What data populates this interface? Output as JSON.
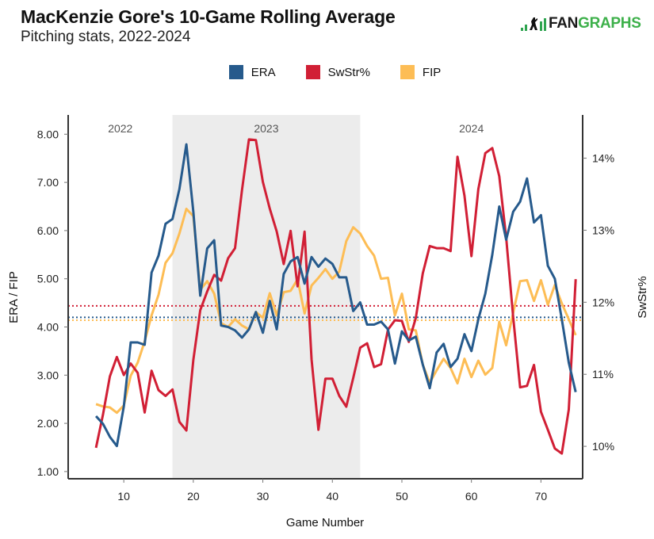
{
  "header": {
    "title": "MacKenzie Gore's 10-Game Rolling Average",
    "subtitle": "Pitching stats, 2022-2024",
    "logo_text_left": "FAN",
    "logo_text_right": "GRAPHS"
  },
  "colors": {
    "era": "#265a8c",
    "swstr": "#d11f35",
    "fip": "#fdbd55",
    "shade": "#ececec",
    "axis": "#333333"
  },
  "chart_data": {
    "type": "line",
    "title": "MacKenzie Gore's 10-Game Rolling Average",
    "subtitle": "Pitching stats, 2022-2024",
    "xlabel": "Game Number",
    "ylabel_left": "ERA / FIP",
    "ylabel_right": "SwStr%",
    "xlim": [
      2,
      76
    ],
    "ylim_left": [
      0.85,
      8.4
    ],
    "ylim_right": [
      9.55,
      14.6
    ],
    "x_ticks": [
      10,
      20,
      30,
      40,
      50,
      60,
      70
    ],
    "y_ticks_left": [
      "1.00",
      "2.00",
      "3.00",
      "4.00",
      "5.00",
      "6.00",
      "7.00",
      "8.00"
    ],
    "y_ticks_right": [
      "10%",
      "11%",
      "12%",
      "13%",
      "14%"
    ],
    "y_ticks_left_values": [
      1,
      2,
      3,
      4,
      5,
      6,
      7,
      8
    ],
    "y_ticks_right_values": [
      10,
      11,
      12,
      13,
      14
    ],
    "grid": false,
    "legend_position": "top-center",
    "seasons": [
      {
        "label": "2022",
        "start": 2,
        "end": 17,
        "shaded": false
      },
      {
        "label": "2023",
        "start": 17,
        "end": 44,
        "shaded": true
      },
      {
        "label": "2024",
        "start": 44,
        "end": 76,
        "shaded": false
      }
    ],
    "x": [
      6,
      7,
      8,
      9,
      10,
      11,
      12,
      13,
      14,
      15,
      16,
      17,
      18,
      19,
      20,
      21,
      22,
      23,
      24,
      25,
      26,
      27,
      28,
      29,
      30,
      31,
      32,
      33,
      34,
      35,
      36,
      37,
      38,
      39,
      40,
      41,
      42,
      43,
      44,
      45,
      46,
      47,
      48,
      49,
      50,
      51,
      52,
      53,
      54,
      55,
      56,
      57,
      58,
      59,
      60,
      61,
      62,
      63,
      64,
      65,
      66,
      67,
      68,
      69,
      70,
      71,
      72,
      73,
      74,
      75
    ],
    "series": [
      {
        "name": "ERA",
        "axis": "left",
        "color": "#265a8c",
        "average": 4.2,
        "values": [
          2.15,
          1.99,
          1.72,
          1.53,
          2.35,
          3.68,
          3.68,
          3.63,
          5.13,
          5.48,
          6.14,
          6.24,
          6.86,
          7.79,
          6.39,
          4.65,
          5.63,
          5.8,
          4.03,
          4.0,
          3.93,
          3.78,
          3.95,
          4.31,
          3.88,
          4.54,
          3.95,
          5.1,
          5.36,
          5.45,
          4.9,
          5.45,
          5.25,
          5.42,
          5.31,
          5.03,
          5.03,
          4.33,
          4.51,
          4.05,
          4.05,
          4.11,
          3.95,
          3.24,
          3.91,
          3.72,
          3.8,
          3.22,
          2.73,
          3.47,
          3.65,
          3.17,
          3.34,
          3.85,
          3.5,
          4.16,
          4.69,
          5.5,
          6.5,
          5.81,
          6.39,
          6.6,
          7.08,
          6.17,
          6.32,
          5.27,
          5.0,
          4.16,
          3.26,
          2.65
        ]
      },
      {
        "name": "SwStr%",
        "axis": "right",
        "color": "#d11f35",
        "average": 11.95,
        "values": [
          9.98,
          10.44,
          10.97,
          11.24,
          10.99,
          11.15,
          11.02,
          10.47,
          11.05,
          10.78,
          10.7,
          10.79,
          10.34,
          10.22,
          11.2,
          11.89,
          12.15,
          12.38,
          12.3,
          12.61,
          12.75,
          13.56,
          14.26,
          14.25,
          13.67,
          13.3,
          12.98,
          12.53,
          12.99,
          12.22,
          12.98,
          11.21,
          10.23,
          10.94,
          10.94,
          10.7,
          10.55,
          10.95,
          11.37,
          11.43,
          11.1,
          11.14,
          11.62,
          11.75,
          11.74,
          11.45,
          11.78,
          12.4,
          12.78,
          12.75,
          12.75,
          12.71,
          14.02,
          13.48,
          12.64,
          13.57,
          14.07,
          14.14,
          13.75,
          12.9,
          11.8,
          10.82,
          10.84,
          11.13,
          10.48,
          10.23,
          9.97,
          9.9,
          10.51,
          12.32
        ]
      },
      {
        "name": "FIP",
        "axis": "left",
        "color": "#fdbd55",
        "average": 4.14,
        "values": [
          2.4,
          2.35,
          2.33,
          2.22,
          2.37,
          2.99,
          3.26,
          3.7,
          4.24,
          4.67,
          5.33,
          5.53,
          5.94,
          6.45,
          6.3,
          4.77,
          4.95,
          4.69,
          4.08,
          4.0,
          4.16,
          4.03,
          3.95,
          4.31,
          4.19,
          4.7,
          4.24,
          4.72,
          4.75,
          4.99,
          4.28,
          4.86,
          5.02,
          5.2,
          5.0,
          5.15,
          5.78,
          6.07,
          5.94,
          5.68,
          5.48,
          5.0,
          5.02,
          4.24,
          4.69,
          3.95,
          3.93,
          3.22,
          2.84,
          3.1,
          3.34,
          3.15,
          2.83,
          3.34,
          2.96,
          3.3,
          3.01,
          3.15,
          4.11,
          3.62,
          4.29,
          4.95,
          4.97,
          4.54,
          4.97,
          4.46,
          4.87,
          4.49,
          4.16,
          3.83
        ]
      }
    ]
  }
}
